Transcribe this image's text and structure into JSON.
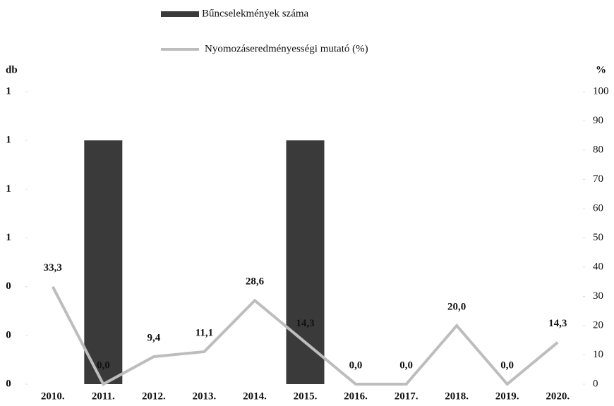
{
  "chart_data": {
    "type": "bar-line",
    "categories": [
      "2010.",
      "2011.",
      "2012.",
      "2013.",
      "2014.",
      "2015.",
      "2016.",
      "2017.",
      "2018.",
      "2019.",
      "2020."
    ],
    "series": [
      {
        "name": "Bűncselekmények száma",
        "type": "bar",
        "axis": "y",
        "color": "#3a3a3a",
        "values": [
          0,
          1,
          0,
          0,
          0,
          1,
          0,
          0,
          0,
          0,
          0
        ]
      },
      {
        "name": "Nyomozáseredményességi mutató (%)",
        "type": "line",
        "axis": "y2",
        "color": "#bdbdbd",
        "values": [
          33.3,
          0.0,
          9.4,
          11.1,
          28.6,
          14.3,
          0.0,
          0.0,
          20.0,
          0.0,
          14.3
        ],
        "value_labels": [
          "33,3",
          "0,0",
          "9,4",
          "11,1",
          "28,6",
          "14,3",
          "0,0",
          "0,0",
          "20,0",
          "0,0",
          "14,3"
        ]
      }
    ],
    "ylabel": "db",
    "y2label": "%",
    "ylim": [
      0,
      1.2
    ],
    "yticks": [
      {
        "value": 0,
        "label": "0"
      },
      {
        "value": 0.2,
        "label": "0"
      },
      {
        "value": 0.4,
        "label": "0"
      },
      {
        "value": 0.6,
        "label": "1"
      },
      {
        "value": 0.8,
        "label": "1"
      },
      {
        "value": 1.0,
        "label": "1"
      },
      {
        "value": 1.2,
        "label": "1"
      }
    ],
    "y2lim": [
      0,
      100
    ],
    "y2ticks": [
      0,
      10,
      20,
      30,
      40,
      50,
      60,
      70,
      80,
      90,
      100
    ],
    "legend": "top"
  }
}
